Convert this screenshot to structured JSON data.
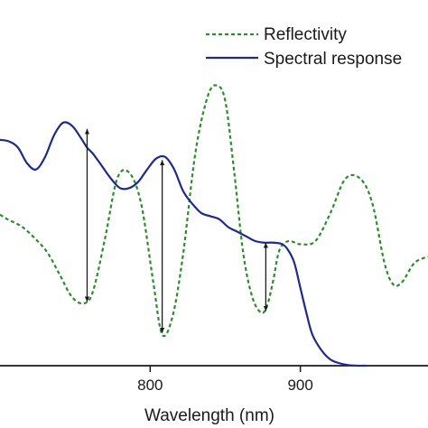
{
  "chart_data": {
    "type": "line",
    "title": "",
    "xlabel": "Wavelength (nm)",
    "ylabel": "",
    "xlim": [
      700,
      985
    ],
    "ylim": [
      0,
      1
    ],
    "x_ticks": [
      800,
      900
    ],
    "x_tick_labels": [
      "800",
      "900"
    ],
    "grid": false,
    "legend_position": "top-right",
    "series": [
      {
        "name": "Reflectivity",
        "style": "dashed",
        "color": "#2e8b2e",
        "x": [
          700,
          705,
          715,
          725,
          732,
          740,
          748,
          756,
          762,
          770,
          778,
          786,
          794,
          802,
          808,
          815,
          822,
          830,
          838,
          844,
          850,
          856,
          862,
          868,
          874,
          878,
          882,
          886,
          892,
          900,
          910,
          920,
          930,
          940,
          948,
          956,
          962,
          968,
          976,
          985
        ],
        "y": [
          0.485,
          0.47,
          0.445,
          0.4,
          0.36,
          0.29,
          0.22,
          0.2,
          0.24,
          0.41,
          0.6,
          0.62,
          0.52,
          0.27,
          0.1,
          0.16,
          0.36,
          0.68,
          0.86,
          0.9,
          0.85,
          0.62,
          0.36,
          0.22,
          0.17,
          0.195,
          0.275,
          0.37,
          0.4,
          0.39,
          0.4,
          0.49,
          0.6,
          0.6,
          0.52,
          0.33,
          0.26,
          0.27,
          0.33,
          0.35
        ]
      },
      {
        "name": "Spectral response",
        "style": "solid",
        "color": "#1f2a8a",
        "x": [
          700,
          706,
          712,
          718,
          724,
          730,
          736,
          742,
          748,
          754,
          758,
          762,
          768,
          774,
          780,
          786,
          792,
          798,
          804,
          810,
          816,
          822,
          828,
          834,
          840,
          846,
          852,
          858,
          864,
          870,
          876,
          882,
          888,
          892,
          896,
          900,
          904,
          908,
          914,
          920,
          926,
          932,
          938,
          944
        ],
        "y": [
          0.725,
          0.72,
          0.7,
          0.65,
          0.63,
          0.67,
          0.74,
          0.78,
          0.77,
          0.73,
          0.7,
          0.68,
          0.64,
          0.6,
          0.57,
          0.57,
          0.59,
          0.63,
          0.665,
          0.67,
          0.63,
          0.56,
          0.52,
          0.49,
          0.48,
          0.47,
          0.445,
          0.43,
          0.415,
          0.4,
          0.395,
          0.395,
          0.39,
          0.37,
          0.33,
          0.25,
          0.17,
          0.1,
          0.05,
          0.02,
          0.008,
          0.002,
          0.0,
          0.0
        ]
      }
    ],
    "annotations": [
      {
        "type": "double-arrow",
        "x": 758,
        "y_from": 0.205,
        "y_to": 0.76
      },
      {
        "type": "double-arrow",
        "x": 808,
        "y_from": 0.105,
        "y_to": 0.66
      },
      {
        "type": "double-arrow",
        "x": 877,
        "y_from": 0.175,
        "y_to": 0.395
      }
    ]
  }
}
